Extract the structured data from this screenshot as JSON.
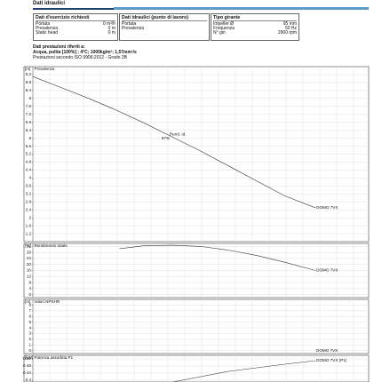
{
  "header": {
    "title": "Dati idraulici"
  },
  "boxes": [
    {
      "title": "Dati d'esercizio richiesti",
      "rows": [
        [
          "Portata",
          "0 m³/h"
        ],
        [
          "Prevalenza",
          "0 m"
        ],
        [
          "Static head",
          "0 m"
        ]
      ]
    },
    {
      "title": "Dati idraulici (punto di lavoro)",
      "rows": [
        [
          "Portata"
        ],
        [
          "Prevalenza"
        ]
      ]
    },
    {
      "title": "Tipo girante",
      "rows": [
        [
          "Impeller Ø",
          "95 mm"
        ],
        [
          "Frequenza",
          "50 Hz"
        ],
        [
          "N° giri",
          "2900 rpm"
        ]
      ]
    }
  ],
  "conditions": {
    "title": "Dati prestazioni riferiti a:",
    "fluid": "Acqua, pulita [100%] ; 4°C; 1000kg/m³; 1,57mm²/s",
    "standard": "Prestazioni secondo ISO 9906:2012 - Grado 3B"
  },
  "chart_data": [
    {
      "type": "line",
      "title": "Prevalenza",
      "y_unit": "[m]",
      "x": [
        0,
        1,
        2,
        3,
        4,
        5,
        6,
        7,
        8,
        9,
        10.1
      ],
      "series": [
        {
          "name": "DOMO 7VX",
          "color": "#333333",
          "values": [
            9.1,
            8.55,
            8.0,
            7.4,
            6.75,
            6.05,
            5.35,
            4.6,
            3.85,
            3.1,
            2.5
          ]
        }
      ],
      "annotations": [
        {
          "text": "Rend. Id.",
          "x": 4.6,
          "y": 6.2
        },
        {
          "text": "87%",
          "x": 4.6,
          "y": 6.0
        }
      ],
      "xlim": [
        0,
        12
      ],
      "ylim": [
        0.8,
        9.6
      ],
      "yticks": [
        9.2,
        8.8,
        8.4,
        8,
        7.6,
        7.2,
        6.8,
        6.4,
        6,
        5.6,
        5.2,
        4.8,
        4.4,
        4,
        3.6,
        3.2,
        2.8,
        2.4,
        2,
        1.6,
        1.2
      ],
      "grid": true
    },
    {
      "type": "line",
      "title": "Rendimento totale",
      "y_unit": "[%]",
      "x": [
        3.1,
        4,
        5,
        6,
        7,
        8,
        9,
        10.1
      ],
      "series": [
        {
          "name": "DOMO 7VX",
          "color": "#333333",
          "values": [
            30.5,
            32.5,
            32.8,
            32,
            29.5,
            26,
            21.5,
            16
          ]
        }
      ],
      "xlim": [
        0,
        12
      ],
      "ylim": [
        -2,
        34
      ],
      "yticks": [
        32,
        28,
        24,
        20,
        16,
        12,
        8,
        4,
        0
      ],
      "grid": true
    },
    {
      "type": "line",
      "title": "Valori NPSHR",
      "y_unit": "[m]",
      "x": [],
      "series": [
        {
          "name": "DOMO 7VX",
          "color": "#333333",
          "values": []
        }
      ],
      "xlim": [
        0,
        12
      ],
      "ylim": [
        -0.5,
        9
      ],
      "yticks": [
        8,
        7,
        6,
        5,
        4,
        3,
        2,
        1,
        0
      ],
      "grid": true
    },
    {
      "type": "line",
      "title": "Potenza assorbita P1",
      "y_unit": "[kW]",
      "x": [
        5,
        6,
        7,
        8,
        9,
        10.1
      ],
      "series": [
        {
          "name": "DOMO 7VX (P1)",
          "color": "#333333",
          "values": [
            0.39,
            0.42,
            0.45,
            0.47,
            0.49,
            0.51
          ]
        }
      ],
      "xlim": [
        0,
        12
      ],
      "ylim": [
        0.39,
        0.54
      ],
      "yticks": [
        0.52,
        0.48,
        0.44,
        0.4
      ],
      "grid": true
    }
  ]
}
